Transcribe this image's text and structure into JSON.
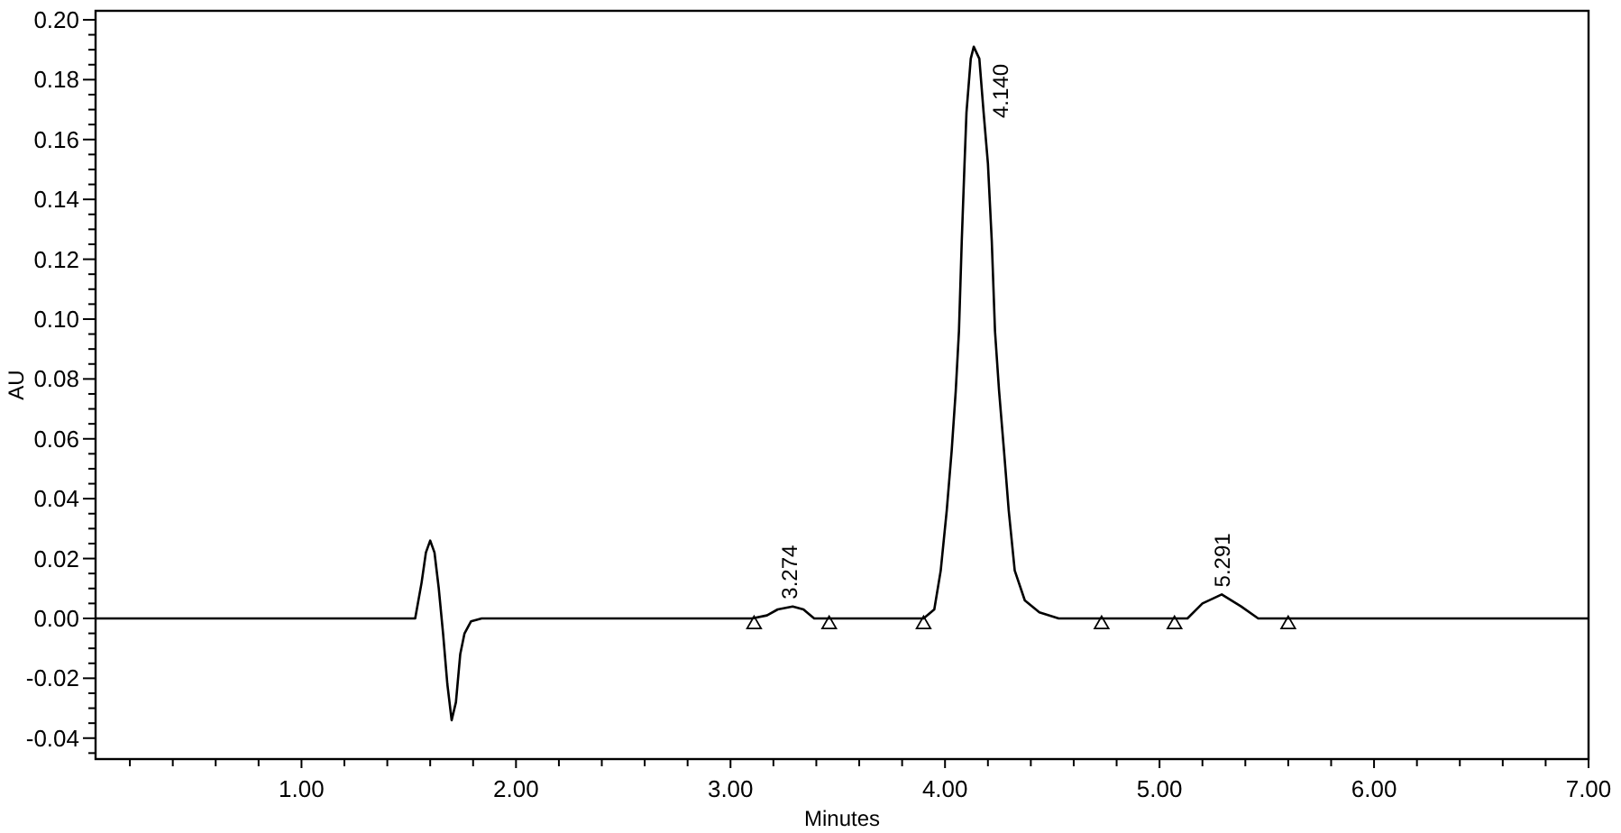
{
  "chart_data": {
    "type": "line",
    "xlabel": "Minutes",
    "ylabel": "AU",
    "xlim": [
      0.04,
      7.0
    ],
    "ylim": [
      -0.047,
      0.203
    ],
    "xticks": [
      {
        "value": 0.2,
        "label": null
      },
      {
        "value": 0.4,
        "label": null
      },
      {
        "value": 0.6,
        "label": null
      },
      {
        "value": 0.8,
        "label": null
      },
      {
        "value": 1,
        "label": "1.00"
      },
      {
        "value": 1.2,
        "label": null
      },
      {
        "value": 1.4,
        "label": null
      },
      {
        "value": 1.6,
        "label": null
      },
      {
        "value": 1.8,
        "label": null
      },
      {
        "value": 2,
        "label": "2.00"
      },
      {
        "value": 2.2,
        "label": null
      },
      {
        "value": 2.4,
        "label": null
      },
      {
        "value": 2.6,
        "label": null
      },
      {
        "value": 2.8,
        "label": null
      },
      {
        "value": 3,
        "label": "3.00"
      },
      {
        "value": 3.2,
        "label": null
      },
      {
        "value": 3.4,
        "label": null
      },
      {
        "value": 3.6,
        "label": null
      },
      {
        "value": 3.8,
        "label": null
      },
      {
        "value": 4,
        "label": "4.00"
      },
      {
        "value": 4.2,
        "label": null
      },
      {
        "value": 4.4,
        "label": null
      },
      {
        "value": 4.6,
        "label": null
      },
      {
        "value": 4.8,
        "label": null
      },
      {
        "value": 5,
        "label": "5.00"
      },
      {
        "value": 5.2,
        "label": null
      },
      {
        "value": 5.4,
        "label": null
      },
      {
        "value": 5.6,
        "label": null
      },
      {
        "value": 5.8,
        "label": null
      },
      {
        "value": 6,
        "label": "6.00"
      },
      {
        "value": 6.2,
        "label": null
      },
      {
        "value": 6.4,
        "label": null
      },
      {
        "value": 6.6,
        "label": null
      },
      {
        "value": 6.8,
        "label": null
      },
      {
        "value": 7,
        "label": "7.00"
      }
    ],
    "yticks": [
      {
        "value": -0.045,
        "label": null
      },
      {
        "value": -0.04,
        "label": "-0.04"
      },
      {
        "value": -0.035,
        "label": null
      },
      {
        "value": -0.03,
        "label": null
      },
      {
        "value": -0.025,
        "label": null
      },
      {
        "value": -0.02,
        "label": "-0.02"
      },
      {
        "value": -0.015,
        "label": null
      },
      {
        "value": -0.01,
        "label": null
      },
      {
        "value": -0.005,
        "label": null
      },
      {
        "value": 0,
        "label": "0.00"
      },
      {
        "value": 0.005,
        "label": null
      },
      {
        "value": 0.01,
        "label": null
      },
      {
        "value": 0.015,
        "label": null
      },
      {
        "value": 0.02,
        "label": "0.02"
      },
      {
        "value": 0.025,
        "label": null
      },
      {
        "value": 0.03,
        "label": null
      },
      {
        "value": 0.035,
        "label": null
      },
      {
        "value": 0.04,
        "label": "0.04"
      },
      {
        "value": 0.045,
        "label": null
      },
      {
        "value": 0.05,
        "label": null
      },
      {
        "value": 0.055,
        "label": null
      },
      {
        "value": 0.06,
        "label": "0.06"
      },
      {
        "value": 0.065,
        "label": null
      },
      {
        "value": 0.07,
        "label": null
      },
      {
        "value": 0.075,
        "label": null
      },
      {
        "value": 0.08,
        "label": "0.08"
      },
      {
        "value": 0.085,
        "label": null
      },
      {
        "value": 0.09,
        "label": null
      },
      {
        "value": 0.095,
        "label": null
      },
      {
        "value": 0.1,
        "label": "0.10"
      },
      {
        "value": 0.105,
        "label": null
      },
      {
        "value": 0.11,
        "label": null
      },
      {
        "value": 0.115,
        "label": null
      },
      {
        "value": 0.12,
        "label": "0.12"
      },
      {
        "value": 0.125,
        "label": null
      },
      {
        "value": 0.13,
        "label": null
      },
      {
        "value": 0.135,
        "label": null
      },
      {
        "value": 0.14,
        "label": "0.14"
      },
      {
        "value": 0.145,
        "label": null
      },
      {
        "value": 0.15,
        "label": null
      },
      {
        "value": 0.155,
        "label": null
      },
      {
        "value": 0.16,
        "label": "0.16"
      },
      {
        "value": 0.165,
        "label": null
      },
      {
        "value": 0.17,
        "label": null
      },
      {
        "value": 0.175,
        "label": null
      },
      {
        "value": 0.18,
        "label": "0.18"
      },
      {
        "value": 0.185,
        "label": null
      },
      {
        "value": 0.19,
        "label": null
      },
      {
        "value": 0.195,
        "label": null
      },
      {
        "value": 0.2,
        "label": "0.20"
      }
    ],
    "series": [
      {
        "color": "#000000",
        "x": [
          0.04,
          1.3,
          1.53,
          1.56,
          1.58,
          1.6,
          1.62,
          1.64,
          1.66,
          1.68,
          1.7,
          1.72,
          1.74,
          1.76,
          1.79,
          1.84,
          3.1,
          3.17,
          3.22,
          3.29,
          3.34,
          3.39,
          3.45,
          3.9,
          3.95,
          3.98,
          4.008,
          4.031,
          4.05,
          4.065,
          4.078,
          4.09,
          4.1,
          4.12,
          4.134,
          4.16,
          4.18,
          4.2,
          4.218,
          4.233,
          4.252,
          4.275,
          4.297,
          4.325,
          4.372,
          4.44,
          4.53,
          4.62,
          5.13,
          5.2,
          5.29,
          5.38,
          5.46,
          5.5,
          7.0
        ],
        "values": [
          0,
          0,
          0,
          0.012,
          0.022,
          0.026,
          0.022,
          0.01,
          -0.005,
          -0.022,
          -0.034,
          -0.028,
          -0.012,
          -0.005,
          -0.001,
          0,
          0,
          0.001,
          0.003,
          0.004,
          0.003,
          0,
          0,
          0,
          0.003,
          0.016,
          0.036,
          0.056,
          0.076,
          0.096,
          0.126,
          0.15,
          0.169,
          0.187,
          0.191,
          0.187,
          0.169,
          0.152,
          0.126,
          0.096,
          0.076,
          0.056,
          0.036,
          0.016,
          0.006,
          0.002,
          0,
          0,
          0,
          0.005,
          0.008,
          0.004,
          0,
          0,
          0
        ]
      },
      {
        "type": "scatter",
        "marker": "triangle",
        "color": "#000000",
        "x": [
          3.11,
          3.46,
          3.9,
          4.73,
          5.07,
          5.6
        ],
        "values": [
          -0.002,
          -0.002,
          -0.002,
          -0.002,
          -0.002,
          -0.002
        ]
      }
    ],
    "annotations": [
      {
        "text": "3.274",
        "x": 3.274,
        "y": 0.004
      },
      {
        "text": "4.140",
        "x": 4.14,
        "y": 0.191
      },
      {
        "text": "5.291",
        "x": 5.291,
        "y": 0.008
      }
    ]
  }
}
